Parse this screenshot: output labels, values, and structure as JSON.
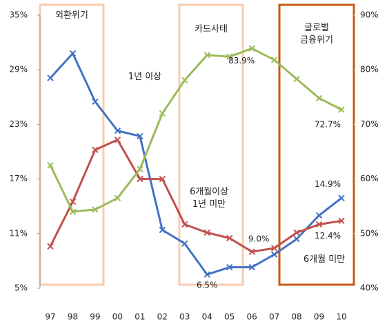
{
  "chart_data": {
    "type": "line",
    "categories": [
      "97",
      "98",
      "99",
      "00",
      "01",
      "02",
      "03",
      "04",
      "05",
      "06",
      "07",
      "08",
      "09",
      "10"
    ],
    "ylim": [
      5,
      35
    ],
    "yticks": [
      {
        "value": 5,
        "label": "5%"
      },
      {
        "value": 11,
        "label": "11%"
      },
      {
        "value": 17,
        "label": "17%"
      },
      {
        "value": 23,
        "label": "23%"
      },
      {
        "value": 29,
        "label": "29%"
      },
      {
        "value": 35,
        "label": "35%"
      }
    ],
    "y2lim": [
      40,
      90
    ],
    "y2ticks": [
      {
        "value": 40,
        "label": "40%"
      },
      {
        "value": 50,
        "label": "50%"
      },
      {
        "value": 60,
        "label": "60%"
      },
      {
        "value": 70,
        "label": "70%"
      },
      {
        "value": 80,
        "label": "80%"
      },
      {
        "value": 90,
        "label": "90%"
      }
    ],
    "series": [
      {
        "name": "6개월 미만",
        "color": "#4472c4",
        "values": [
          28.1,
          30.8,
          25.5,
          22.3,
          21.7,
          11.4,
          9.9,
          6.5,
          7.3,
          7.3,
          8.7,
          10.4,
          13.0,
          14.9
        ],
        "value_labels": [
          null,
          null,
          null,
          null,
          null,
          null,
          null,
          "6.5%",
          null,
          null,
          null,
          null,
          null,
          "14.9%"
        ]
      },
      {
        "name": "6개월이상\n1년 미만",
        "color": "#c0504d",
        "values": [
          9.6,
          14.5,
          20.2,
          21.3,
          17.0,
          17.0,
          12.0,
          11.1,
          10.5,
          9.0,
          9.4,
          11.1,
          12.0,
          12.4
        ],
        "value_labels": [
          null,
          null,
          null,
          null,
          null,
          null,
          null,
          null,
          null,
          "9.0%",
          null,
          null,
          null,
          "12.4%"
        ]
      },
      {
        "name": "1년 이상",
        "color": "#9bbb59",
        "axis": "y2",
        "values": [
          62.5,
          54.0,
          54.4,
          56.5,
          61.8,
          72.0,
          78.1,
          82.7,
          82.4,
          83.9,
          81.8,
          78.3,
          74.8,
          72.7
        ],
        "value_labels": [
          null,
          null,
          null,
          null,
          null,
          null,
          null,
          null,
          null,
          "83.9%",
          null,
          null,
          null,
          "72.7%"
        ]
      }
    ],
    "annotations": [
      "외환위기",
      "카드사태",
      "글로벌\n금융위기"
    ]
  }
}
